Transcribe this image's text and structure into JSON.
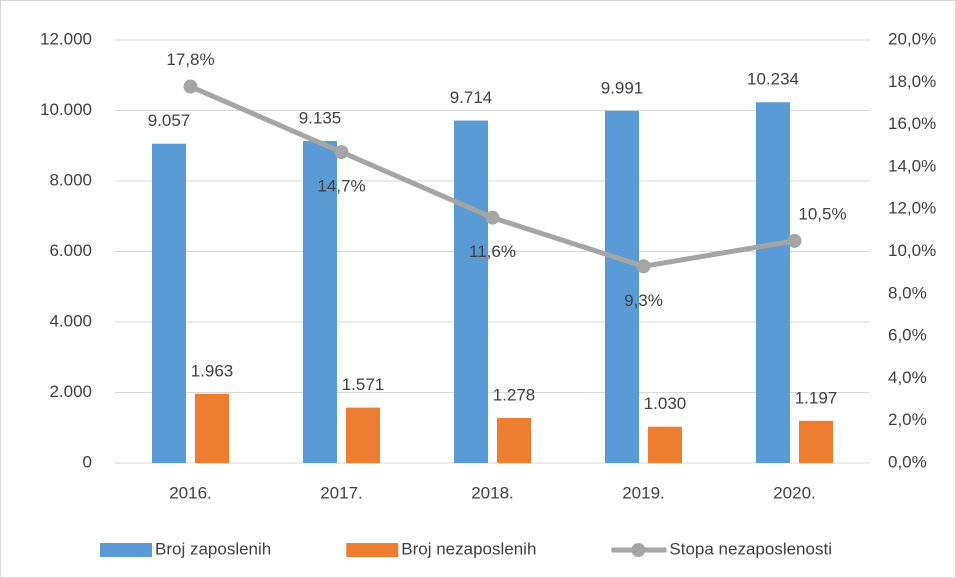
{
  "chart_data": {
    "type": "bar-line",
    "categories": [
      "2016.",
      "2017.",
      "2018.",
      "2019.",
      "2020."
    ],
    "series": [
      {
        "name": "Broj zaposlenih",
        "type": "bar",
        "color": "#5b9bd5",
        "values": [
          9057,
          9135,
          9714,
          9991,
          10234
        ],
        "value_labels": [
          "9.057",
          "9.135",
          "9.714",
          "9.991",
          "10.234"
        ]
      },
      {
        "name": "Broj nezaposlenih",
        "type": "bar",
        "color": "#ed7d31",
        "values": [
          1963,
          1571,
          1278,
          1030,
          1197
        ],
        "value_labels": [
          "1.963",
          "1.571",
          "1.278",
          "1.030",
          "1.197"
        ]
      },
      {
        "name": "Stopa nezaposlenosti",
        "type": "line",
        "axis": "y2",
        "color": "#a5a5a5",
        "values": [
          17.8,
          14.7,
          11.6,
          9.3,
          10.5
        ],
        "value_labels": [
          "17,8%",
          "14,7%",
          "11,6%",
          "9,3%",
          "10,5%"
        ]
      }
    ],
    "ylim": [
      0,
      12000
    ],
    "yticks": [
      0,
      {
        "value": 2000,
        "label": "2.000"
      },
      {
        "value": 4000,
        "label": "4.000"
      },
      {
        "value": 6000,
        "label": "6.000"
      },
      {
        "value": 8000,
        "label": "8.000"
      },
      {
        "value": 10000,
        "label": "10.000"
      },
      {
        "value": 12000,
        "label": "12.000"
      }
    ],
    "y2lim": [
      0,
      20
    ],
    "y2ticks": [
      {
        "value": 0,
        "label": "0,0%"
      },
      {
        "value": 2,
        "label": "2,0%"
      },
      {
        "value": 4,
        "label": "4,0%"
      },
      {
        "value": 6,
        "label": "6,0%"
      },
      {
        "value": 8,
        "label": "8,0%"
      },
      {
        "value": 10,
        "label": "10,0%"
      },
      {
        "value": 12,
        "label": "12,0%"
      },
      {
        "value": 14,
        "label": "14,0%"
      },
      {
        "value": 16,
        "label": "16,0%"
      },
      {
        "value": 18,
        "label": "18,0%"
      },
      {
        "value": 20,
        "label": "20,0%"
      }
    ],
    "grid": true,
    "legend": "bottom"
  }
}
